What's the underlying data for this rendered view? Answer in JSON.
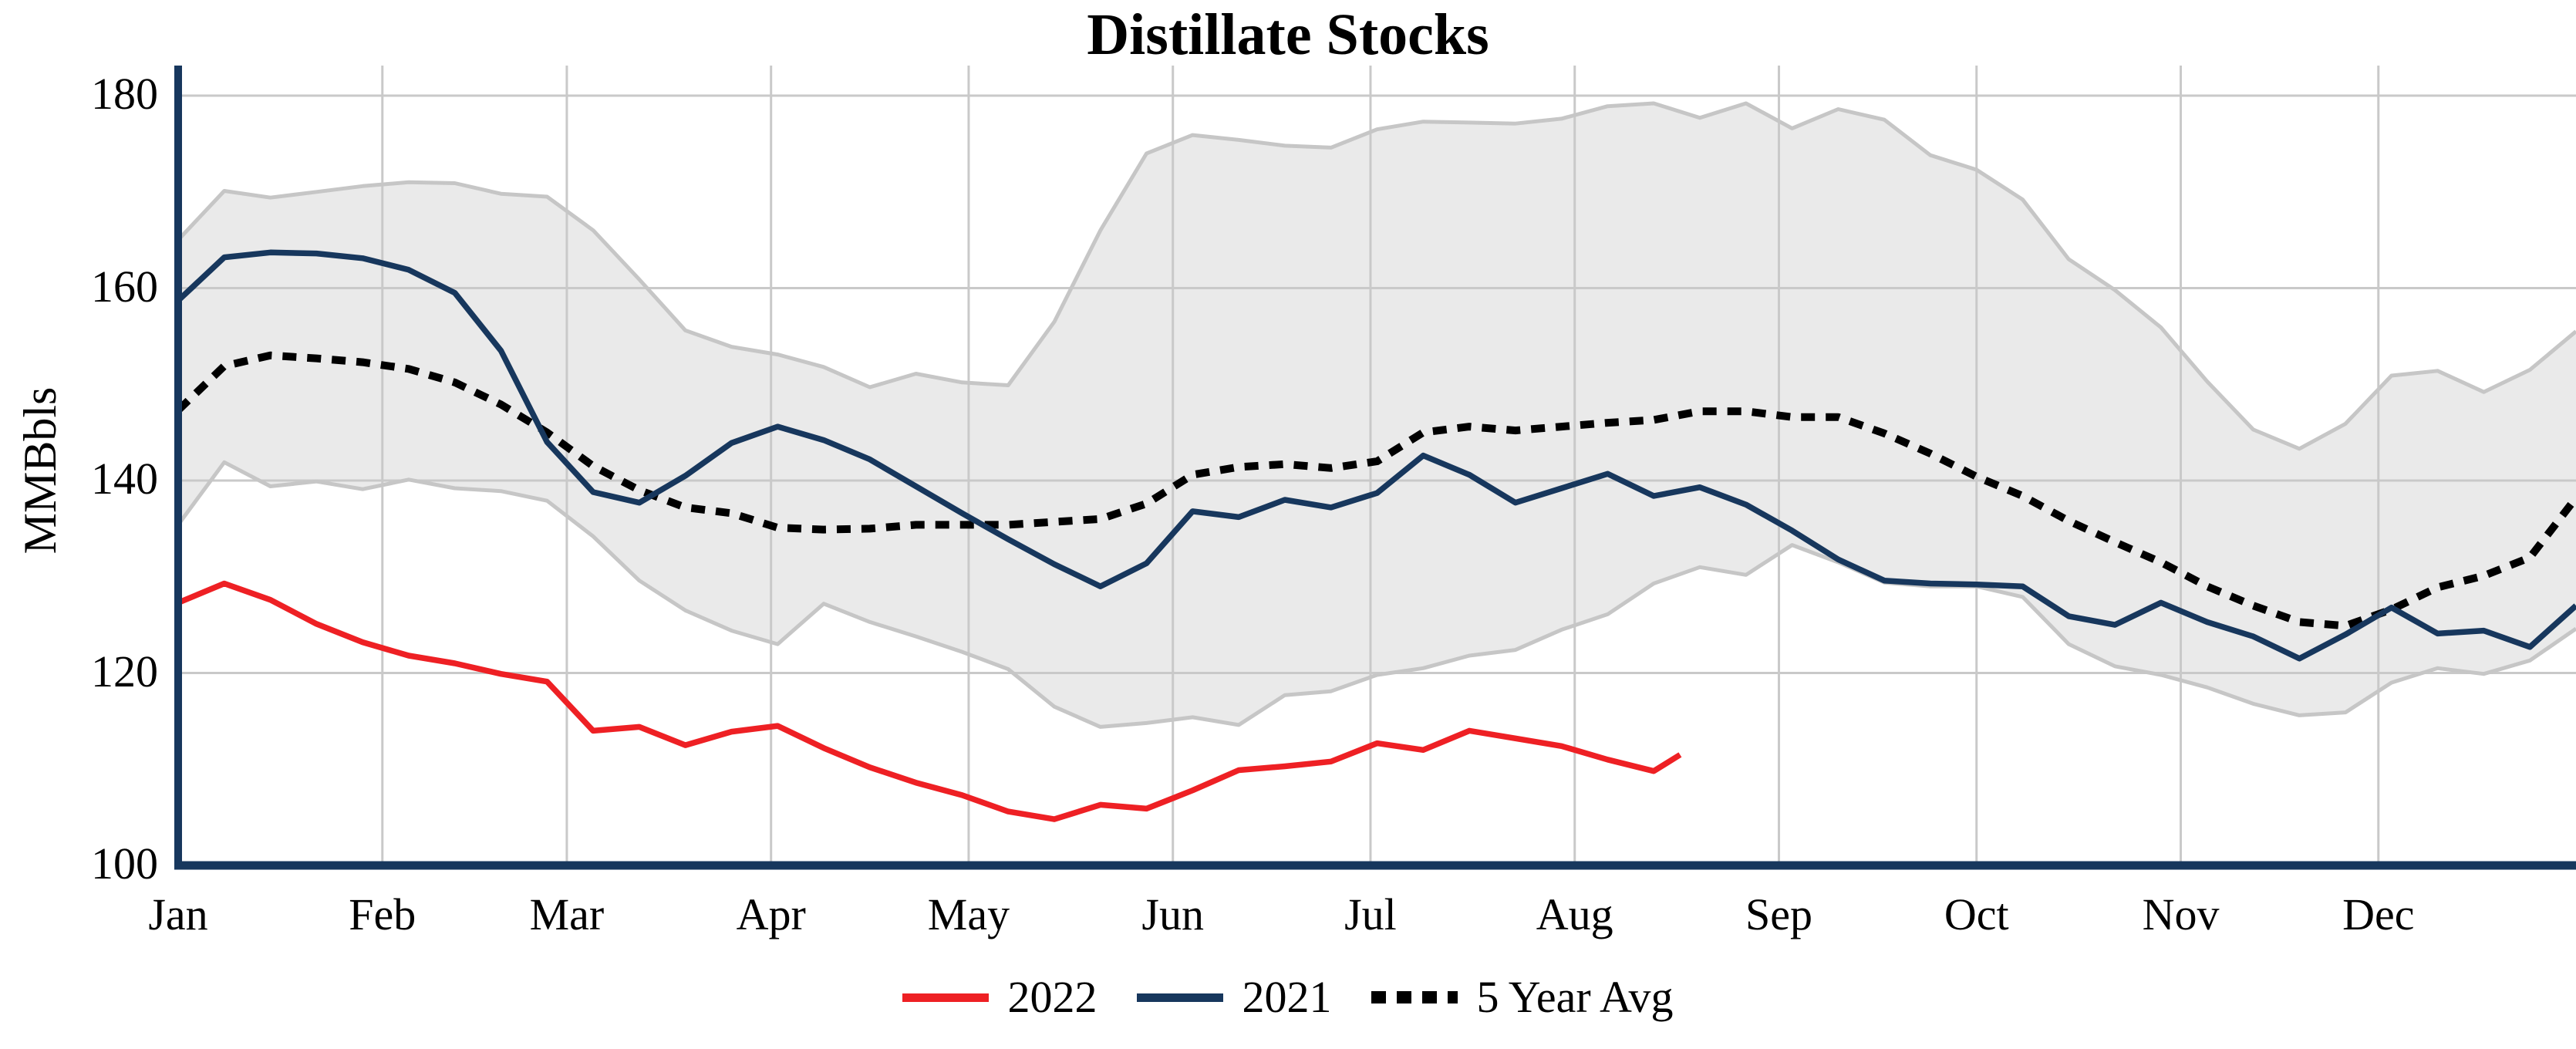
{
  "title": "Distillate Stocks",
  "colors": {
    "red_2022": "#ee2024",
    "navy_2021": "#17375d",
    "avg_black": "#000000",
    "band_fill": "#eaeaea",
    "band_edge": "#c6c6c6",
    "grid": "#c9c9c9",
    "axis": "#17375d",
    "background": "#ffffff"
  },
  "legend": {
    "items": [
      {
        "label": "2022",
        "swatch": "red-line"
      },
      {
        "label": "2021",
        "swatch": "navy-line"
      },
      {
        "label": "5 Year Avg",
        "swatch": "black-dotted-line"
      }
    ]
  },
  "chart_data": {
    "type": "line",
    "title": "Distillate Stocks",
    "xlabel": "",
    "ylabel": "MMBbls",
    "ylim": [
      100,
      183
    ],
    "xlim_days": [
      0,
      364
    ],
    "grid": true,
    "legend_position": "bottom-center",
    "y_ticks": [
      100,
      120,
      140,
      160,
      180
    ],
    "y_tick_labels": [
      "100",
      "120",
      "140",
      "160",
      "180"
    ],
    "x_tick_labels": [
      "Jan",
      "Feb",
      "Mar",
      "Apr",
      "May",
      "Jun",
      "Jul",
      "Aug",
      "Sep",
      "Oct",
      "Nov",
      "Dec"
    ],
    "month_start_days": [
      0,
      31,
      59,
      90,
      120,
      151,
      181,
      212,
      243,
      273,
      304,
      334
    ],
    "band": {
      "name": "5-year range",
      "days": [
        0,
        7,
        14,
        21,
        28,
        35,
        42,
        49,
        56,
        63,
        70,
        77,
        84,
        91,
        98,
        105,
        112,
        119,
        126,
        133,
        140,
        147,
        154,
        161,
        168,
        175,
        182,
        189,
        196,
        203,
        210,
        217,
        224,
        231,
        238,
        245,
        252,
        259,
        266,
        273,
        280,
        287,
        294,
        301,
        308,
        315,
        322,
        329,
        336,
        343,
        350,
        357,
        364
      ],
      "max": [
        165.0,
        170.1,
        169.4,
        170.0,
        170.6,
        171.0,
        170.9,
        169.8,
        169.5,
        166.0,
        160.9,
        155.6,
        153.9,
        153.1,
        151.8,
        149.7,
        151.1,
        150.2,
        149.9,
        156.5,
        166.0,
        174.0,
        175.9,
        175.4,
        174.8,
        174.6,
        176.5,
        177.3,
        177.2,
        177.1,
        177.6,
        178.9,
        179.2,
        177.7,
        179.2,
        176.6,
        178.6,
        177.5,
        173.8,
        172.3,
        169.2,
        163.0,
        159.8,
        155.9,
        150.3,
        145.3,
        143.3,
        145.9,
        150.9,
        151.4,
        149.2,
        151.5,
        155.5
      ],
      "min": [
        135.4,
        141.9,
        139.4,
        139.9,
        139.1,
        140.1,
        139.2,
        138.9,
        137.9,
        134.2,
        129.6,
        126.5,
        124.4,
        123.0,
        127.2,
        125.3,
        123.8,
        122.2,
        120.4,
        116.5,
        114.4,
        114.8,
        115.4,
        114.6,
        117.7,
        118.1,
        119.8,
        120.5,
        121.8,
        122.4,
        124.5,
        126.1,
        129.3,
        131.0,
        130.2,
        133.3,
        131.5,
        129.4,
        129.0,
        129.0,
        127.9,
        123.0,
        120.7,
        119.8,
        118.5,
        116.8,
        115.6,
        115.9,
        119.0,
        120.5,
        119.9,
        121.3,
        124.6
      ]
    },
    "series": [
      {
        "name": "2022",
        "style": "solid",
        "color": "#ee2024",
        "days": [
          0,
          7,
          14,
          21,
          28,
          35,
          42,
          49,
          56,
          63,
          70,
          77,
          84,
          91,
          98,
          105,
          112,
          119,
          126,
          133,
          140,
          147,
          154,
          161,
          168,
          175,
          182,
          189,
          196,
          203,
          210,
          217,
          224,
          228
        ],
        "values": [
          127.3,
          129.3,
          127.6,
          125.1,
          123.2,
          121.8,
          121.0,
          119.9,
          119.1,
          114.0,
          114.4,
          112.5,
          113.9,
          114.5,
          112.2,
          110.2,
          108.6,
          107.3,
          105.6,
          104.8,
          106.3,
          105.9,
          107.8,
          109.9,
          110.3,
          110.8,
          112.7,
          112.0,
          114.0,
          113.2,
          112.4,
          111.0,
          109.8,
          111.5
        ]
      },
      {
        "name": "2021",
        "style": "solid",
        "color": "#17375d",
        "days": [
          0,
          7,
          14,
          21,
          28,
          35,
          42,
          49,
          56,
          63,
          70,
          77,
          84,
          91,
          98,
          105,
          112,
          119,
          126,
          133,
          140,
          147,
          154,
          161,
          168,
          175,
          182,
          189,
          196,
          203,
          210,
          217,
          224,
          231,
          238,
          245,
          252,
          259,
          266,
          273,
          280,
          287,
          294,
          301,
          308,
          315,
          322,
          329,
          336,
          343,
          350,
          357,
          364
        ],
        "values": [
          158.7,
          163.2,
          163.7,
          163.6,
          163.1,
          161.9,
          159.5,
          153.5,
          144.0,
          138.8,
          137.7,
          140.5,
          143.9,
          145.6,
          144.2,
          142.2,
          139.4,
          136.6,
          133.9,
          131.3,
          129.0,
          131.4,
          136.8,
          136.2,
          138.0,
          137.2,
          138.7,
          142.6,
          140.6,
          137.7,
          139.2,
          140.7,
          138.4,
          139.3,
          137.5,
          134.8,
          131.8,
          129.6,
          129.3,
          129.2,
          129.0,
          125.9,
          125.0,
          127.3,
          125.3,
          123.8,
          121.5,
          124.0,
          126.8,
          124.1,
          124.4,
          122.7,
          127.0
        ]
      },
      {
        "name": "5 Year Avg",
        "style": "dotted",
        "color": "#000000",
        "days": [
          0,
          7,
          14,
          21,
          28,
          35,
          42,
          49,
          56,
          63,
          70,
          77,
          84,
          91,
          98,
          105,
          112,
          119,
          126,
          133,
          140,
          147,
          154,
          161,
          168,
          175,
          182,
          189,
          196,
          203,
          210,
          217,
          224,
          231,
          238,
          245,
          252,
          259,
          266,
          273,
          280,
          287,
          294,
          301,
          308,
          315,
          322,
          329,
          336,
          343,
          350,
          357,
          364
        ],
        "values": [
          147.3,
          151.9,
          153.0,
          152.7,
          152.3,
          151.6,
          150.2,
          147.9,
          145.0,
          141.5,
          139.0,
          137.2,
          136.6,
          135.1,
          134.9,
          135.0,
          135.4,
          135.4,
          135.4,
          135.7,
          136.0,
          137.6,
          140.6,
          141.4,
          141.7,
          141.3,
          142.0,
          145.0,
          145.6,
          145.2,
          145.6,
          146.0,
          146.3,
          147.2,
          147.2,
          146.6,
          146.6,
          144.9,
          142.8,
          140.4,
          138.4,
          135.8,
          133.6,
          131.5,
          129.0,
          127.0,
          125.3,
          124.9,
          126.6,
          128.9,
          130.1,
          132.0,
          138.2
        ]
      }
    ]
  }
}
